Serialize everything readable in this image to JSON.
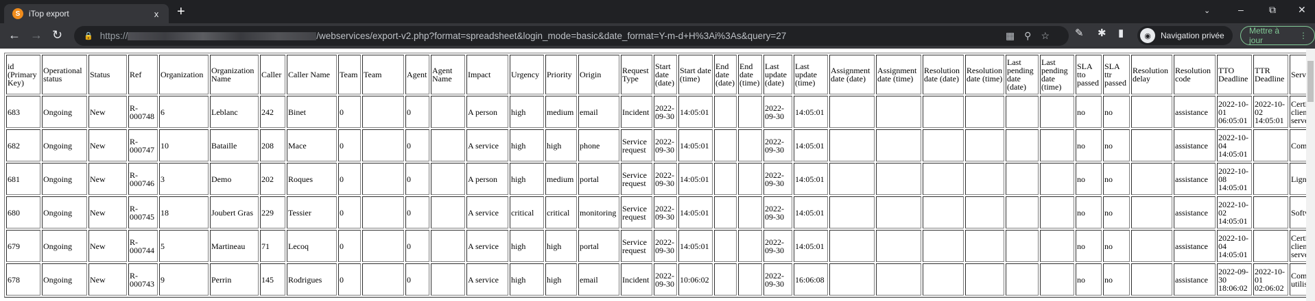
{
  "browser": {
    "tab_title": "iTop export",
    "tab_close": "x",
    "new_tab": "+",
    "url_prefix": "https://",
    "url_path": "/webservices/export-v2.php?format=spreadsheet&login_mode=basic&date_format=Y-m-d+H%3Ai%3As&query=27",
    "incognito_label": "Navigation privée",
    "update_label": "Mettre à jour",
    "colors": {
      "tabbar": "#202124",
      "toolbar": "#35363a",
      "update": "#81c995"
    }
  },
  "table": {
    "columns": [
      "id (Primary Key)",
      "Operational status",
      "Status",
      "Ref",
      "Organization",
      "Organization Name",
      "Caller",
      "Caller Name",
      "Team",
      "Team",
      "Agent",
      "Agent Name",
      "Impact",
      "Urgency",
      "Priority",
      "Origin",
      "Request Type",
      "Start date (date)",
      "Start date (time)",
      "End date (date)",
      "End date (time)",
      "Last update (date)",
      "Last update (time)",
      "Assignment date (date)",
      "Assignment date (time)",
      "Resolution date (date)",
      "Resolution date (time)",
      "Last pending date (date)",
      "Last pending date (time)",
      "SLA tto passed",
      "SLA ttr passed",
      "Resolution delay",
      "Resolution code",
      "TTO Deadline",
      "TTR Deadline",
      "Service name"
    ],
    "rows": [
      [
        "683",
        "Ongoing",
        "New",
        "R-000748",
        "6",
        "Leblanc",
        "242",
        "Binet",
        "0",
        "",
        "0",
        "",
        "A person",
        "high",
        "medium",
        "email",
        "Incident",
        "2022-09-30",
        "14:05:01",
        "",
        "",
        "2022-09-30",
        "14:05:01",
        "",
        "",
        "",
        "",
        "",
        "",
        "no",
        "no",
        "",
        "assistance",
        "2022-10-01 06:05:01",
        "2022-10-02 14:05:01",
        "Certificats clients et serveurs"
      ],
      [
        "682",
        "Ongoing",
        "New",
        "R-000747",
        "10",
        "Bataille",
        "208",
        "Mace",
        "0",
        "",
        "0",
        "",
        "A service",
        "high",
        "high",
        "phone",
        "Service request",
        "2022-09-30",
        "14:05:01",
        "",
        "",
        "2022-09-30",
        "14:05:01",
        "",
        "",
        "",
        "",
        "",
        "",
        "no",
        "no",
        "",
        "assistance",
        "2022-10-04 14:05:01",
        "",
        "Compte VPN"
      ],
      [
        "681",
        "Ongoing",
        "New",
        "R-000746",
        "3",
        "Demo",
        "202",
        "Roques",
        "0",
        "",
        "0",
        "",
        "A person",
        "high",
        "medium",
        "portal",
        "Service request",
        "2022-09-30",
        "14:05:01",
        "",
        "",
        "2022-09-30",
        "14:05:01",
        "",
        "",
        "",
        "",
        "",
        "",
        "no",
        "no",
        "",
        "assistance",
        "2022-10-08 14:05:01",
        "",
        "Ligne mobile"
      ],
      [
        "680",
        "Ongoing",
        "New",
        "R-000745",
        "18",
        "Joubert Gras",
        "229",
        "Tessier",
        "0",
        "",
        "0",
        "",
        "A service",
        "critical",
        "critical",
        "monitoring",
        "Service request",
        "2022-09-30",
        "14:05:01",
        "",
        "",
        "2022-09-30",
        "14:05:01",
        "",
        "",
        "",
        "",
        "",
        "",
        "no",
        "no",
        "",
        "assistance",
        "2022-10-02 14:05:01",
        "",
        "Software"
      ],
      [
        "679",
        "Ongoing",
        "New",
        "R-000744",
        "5",
        "Martineau",
        "71",
        "Lecoq",
        "0",
        "",
        "0",
        "",
        "A service",
        "high",
        "high",
        "portal",
        "Service request",
        "2022-09-30",
        "14:05:01",
        "",
        "",
        "2022-09-30",
        "14:05:01",
        "",
        "",
        "",
        "",
        "",
        "",
        "no",
        "no",
        "",
        "assistance",
        "2022-10-04 14:05:01",
        "",
        "Certificats clients et serveurs"
      ],
      [
        "678",
        "Ongoing",
        "New",
        "R-000743",
        "9",
        "Perrin",
        "145",
        "Rodrigues",
        "0",
        "",
        "0",
        "",
        "A service",
        "high",
        "high",
        "email",
        "Incident",
        "2022-09-30",
        "10:06:02",
        "",
        "",
        "2022-09-30",
        "16:06:08",
        "",
        "",
        "",
        "",
        "",
        "",
        "no",
        "no",
        "",
        "assistance",
        "2022-09-30 18:06:02",
        "2022-10-01 02:06:02",
        "Comptes utilisateurs BDD"
      ]
    ]
  }
}
